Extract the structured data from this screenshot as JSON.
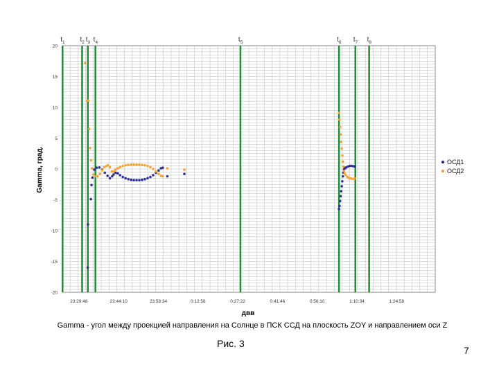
{
  "page": {
    "caption": "Рис. 3",
    "page_number": "7"
  },
  "chart_data": {
    "type": "scatter",
    "title": "Gamma - угол между проекцией направления на Солнце в ПСК ССД на плоскость ZOY и направлением оси Z",
    "xlabel": "двв",
    "ylabel": "Gamma, град.",
    "ylim": [
      -20,
      20
    ],
    "yticks": [
      -20,
      -15,
      -10,
      -5,
      0,
      5,
      10,
      15,
      20
    ],
    "xlim_seconds": [
      84226,
      92338
    ],
    "xtick_labels": [
      "23:29:46",
      "23:44:10",
      "23:58:34",
      "0:12:58",
      "0:27:22",
      "0:41:46",
      "0:56:10",
      "1:10:34",
      "1:24:58"
    ],
    "xtick_seconds": [
      84586,
      85450,
      86314,
      87178,
      88042,
      88906,
      89770,
      90634,
      91498
    ],
    "grid": true,
    "legend_position": "right",
    "colors": {
      "osd1": "#2e3192",
      "osd2": "#f7a234",
      "markers": "#1e8c3a",
      "grid": "#b9b9b9"
    },
    "markers": [
      {
        "label": "t",
        "sub": "1",
        "x": 84230
      },
      {
        "label": "t",
        "sub": "2",
        "x": 84655
      },
      {
        "label": "t",
        "sub": "3",
        "x": 84780
      },
      {
        "label": "t",
        "sub": "4",
        "x": 84945
      },
      {
        "label": "t",
        "sub": "5",
        "x": 88100
      },
      {
        "label": "t",
        "sub": "6",
        "x": 90244
      },
      {
        "label": "t",
        "sub": "7",
        "x": 90600
      },
      {
        "label": "t",
        "sub": "8",
        "x": 90900
      }
    ],
    "series": [
      {
        "name": "ОСД1",
        "points": [
          [
            84778,
            -16
          ],
          [
            84782,
            -9
          ],
          [
            84847,
            -4.9
          ],
          [
            84860,
            -2.6
          ],
          [
            84880,
            -1.4
          ],
          [
            84920,
            -0.1
          ],
          [
            84970,
            0.2
          ],
          [
            85030,
            0.25
          ],
          [
            85090,
            -0.1
          ],
          [
            85150,
            -0.6
          ],
          [
            85210,
            -1.1
          ],
          [
            85260,
            -1.5
          ],
          [
            85310,
            -1.2
          ],
          [
            85340,
            -0.9
          ],
          [
            85380,
            -0.6
          ],
          [
            85430,
            -0.7
          ],
          [
            85480,
            -1.0
          ],
          [
            85540,
            -1.3
          ],
          [
            85600,
            -1.5
          ],
          [
            85660,
            -1.65
          ],
          [
            85720,
            -1.75
          ],
          [
            85780,
            -1.8
          ],
          [
            85840,
            -1.8
          ],
          [
            85900,
            -1.8
          ],
          [
            85960,
            -1.75
          ],
          [
            86020,
            -1.65
          ],
          [
            86080,
            -1.5
          ],
          [
            86140,
            -1.3
          ],
          [
            86200,
            -1.0
          ],
          [
            86260,
            -0.6
          ],
          [
            86320,
            -0.25
          ],
          [
            86370,
            0.1
          ],
          [
            86410,
            0.2
          ],
          [
            86510,
            -1.2
          ],
          [
            86880,
            -0.8
          ],
          [
            90244,
            -6.5
          ],
          [
            90256,
            -6.0
          ],
          [
            90268,
            -5.2
          ],
          [
            90280,
            -4.4
          ],
          [
            90292,
            -3.6
          ],
          [
            90304,
            -2.8
          ],
          [
            90316,
            -2.0
          ],
          [
            90328,
            -1.2
          ],
          [
            90340,
            -0.6
          ],
          [
            90352,
            -0.1
          ],
          [
            90364,
            0.2
          ],
          [
            90376,
            0.1
          ],
          [
            90400,
            0.25
          ],
          [
            90440,
            0.4
          ],
          [
            90480,
            0.5
          ],
          [
            90520,
            0.5
          ],
          [
            90560,
            0.45
          ],
          [
            90590,
            0.4
          ]
        ]
      },
      {
        "name": "ОСД2",
        "points": [
          [
            84720,
            17.2
          ],
          [
            84765,
            11.1
          ],
          [
            84790,
            11.1
          ],
          [
            84810,
            6.5
          ],
          [
            84830,
            3.4
          ],
          [
            84850,
            1.4
          ],
          [
            84870,
            0.1
          ],
          [
            84900,
            -0.9
          ],
          [
            84940,
            -1.2
          ],
          [
            84990,
            -1.2
          ],
          [
            85040,
            -0.8
          ],
          [
            85090,
            -0.2
          ],
          [
            85140,
            0.3
          ],
          [
            85190,
            0.5
          ],
          [
            85220,
            0.6
          ],
          [
            85260,
            0.3
          ],
          [
            85300,
            -0.4
          ],
          [
            85340,
            -0.4
          ],
          [
            85380,
            -0.1
          ],
          [
            85430,
            0.1
          ],
          [
            85480,
            0.3
          ],
          [
            85540,
            0.5
          ],
          [
            85600,
            0.6
          ],
          [
            85660,
            0.65
          ],
          [
            85720,
            0.7
          ],
          [
            85780,
            0.7
          ],
          [
            85840,
            0.7
          ],
          [
            85900,
            0.7
          ],
          [
            85960,
            0.65
          ],
          [
            86020,
            0.6
          ],
          [
            86080,
            0.5
          ],
          [
            86140,
            0.3
          ],
          [
            86200,
            0.0
          ],
          [
            86260,
            -0.4
          ],
          [
            86320,
            -0.8
          ],
          [
            86370,
            -1.1
          ],
          [
            86410,
            -1.2
          ],
          [
            86510,
            0.1
          ],
          [
            86880,
            -0.1
          ],
          [
            90244,
            9.1
          ],
          [
            90256,
            8.0
          ],
          [
            90268,
            6.8
          ],
          [
            90280,
            5.6
          ],
          [
            90292,
            4.4
          ],
          [
            90304,
            3.3
          ],
          [
            90316,
            2.2
          ],
          [
            90328,
            1.2
          ],
          [
            90340,
            0.4
          ],
          [
            90352,
            -0.3
          ],
          [
            90364,
            -0.7
          ],
          [
            90390,
            -1.0
          ],
          [
            90430,
            -1.3
          ],
          [
            90470,
            -1.5
          ],
          [
            90510,
            -1.55
          ],
          [
            90550,
            -1.6
          ],
          [
            90590,
            -1.55
          ]
        ]
      }
    ]
  }
}
